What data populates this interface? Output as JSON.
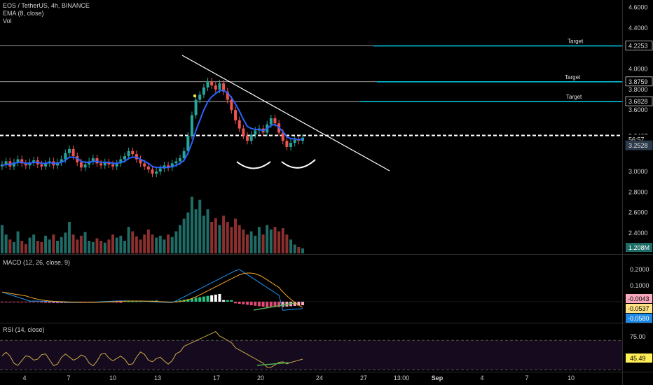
{
  "header": {
    "title": "EOS / TetherUS, 4h, BINANCE",
    "ema_label": "EMA (8, close)",
    "vol_label": "Vol"
  },
  "panes": {
    "macd_label": "MACD (12, 26, close, 9)",
    "rsi_label": "RSI (14, close)"
  },
  "colors": {
    "up": "#26a69a",
    "down": "#ef5350",
    "vol_up": "#1f6b66",
    "vol_down": "#8b2f2f",
    "ema": "#2962ff",
    "macd": "#2196f3",
    "signal": "#f5a623",
    "hist_up": "#26c281",
    "hist_down": "#e04b75",
    "target_line": "#00bcd4",
    "rsi": "#c8a84b",
    "divergence": "#4caf50"
  },
  "chart_data": [
    {
      "type": "candlestick",
      "series": [
        {
          "name": "",
          "values": [
            3.07,
            3.1,
            3.05,
            3.09,
            3.12,
            3.08,
            3.06,
            3.09,
            3.11,
            3.07,
            3.05,
            3.08,
            3.1,
            3.06,
            3.09,
            3.12,
            3.18,
            3.22,
            3.15,
            3.09,
            3.04,
            3.07,
            3.1,
            3.13,
            3.08,
            3.06,
            3.09,
            3.07,
            3.05,
            3.08,
            3.12,
            3.15,
            3.2,
            3.17,
            3.12,
            3.08,
            3.05,
            3.02,
            2.98,
            3.0,
            3.03,
            3.06,
            3.04,
            3.08,
            3.1,
            3.13,
            3.2,
            3.35,
            3.55,
            3.7,
            3.75,
            3.82,
            3.88,
            3.84,
            3.8,
            3.86,
            3.78,
            3.7,
            3.6,
            3.5,
            3.42,
            3.35,
            3.3,
            3.36,
            3.4,
            3.42,
            3.38,
            3.46,
            3.52,
            3.47,
            3.38,
            3.3,
            3.24,
            3.28,
            3.31,
            3.3,
            3.33
          ]
        },
        {
          "name": "EMA (8, close)",
          "values": [
            3.06,
            3.07,
            3.07,
            3.08,
            3.09,
            3.09,
            3.08,
            3.08,
            3.09,
            3.09,
            3.08,
            3.08,
            3.09,
            3.08,
            3.08,
            3.09,
            3.11,
            3.14,
            3.14,
            3.13,
            3.1,
            3.09,
            3.09,
            3.1,
            3.1,
            3.09,
            3.09,
            3.09,
            3.08,
            3.08,
            3.09,
            3.1,
            3.13,
            3.14,
            3.14,
            3.12,
            3.1,
            3.08,
            3.05,
            3.04,
            3.04,
            3.04,
            3.04,
            3.05,
            3.06,
            3.08,
            3.11,
            3.18,
            3.28,
            3.4,
            3.5,
            3.6,
            3.68,
            3.73,
            3.76,
            3.79,
            3.79,
            3.77,
            3.72,
            3.66,
            3.59,
            3.51,
            3.44,
            3.42,
            3.41,
            3.41,
            3.4,
            3.42,
            3.45,
            3.46,
            3.43,
            3.39,
            3.34,
            3.32,
            3.32,
            3.31,
            3.32
          ]
        }
      ],
      "y_axis_labels": [
        "4.6000",
        "4.4000",
        "4.0000",
        "3.8000",
        "3.6000",
        "3.0000",
        "2.8000",
        "2.6000",
        "2.4000"
      ],
      "price_tags": [
        {
          "label": "4.2253",
          "value": 4.2253,
          "style": "target",
          "text": "Target"
        },
        {
          "label": "3.8759",
          "value": 3.8759,
          "style": "target",
          "text": "Target"
        },
        {
          "label": "3.6828",
          "value": 3.6828,
          "style": "target",
          "text": "Target"
        },
        {
          "label": "3.3467",
          "value": 3.3467,
          "style": "plain"
        },
        {
          "label": "56:57",
          "value": 3.31,
          "style": "timer"
        },
        {
          "label": "3.2528",
          "value": 3.2528,
          "style": "price"
        }
      ],
      "volume_tag": "1.208M",
      "ylim": [
        2.3,
        4.7
      ]
    },
    {
      "type": "histogram",
      "title": "MACD (12, 26, close, 9)",
      "y_axis_labels": [
        "0.2000",
        "0.1000"
      ],
      "tags": [
        "-0.0043",
        "-0.0537",
        "-0.0580"
      ],
      "ylim": [
        -0.1,
        0.25
      ]
    },
    {
      "type": "line",
      "title": "RSI (14, close)",
      "y_axis_labels": [
        "75.00"
      ],
      "tags": [
        "45.49"
      ],
      "ylim": [
        20,
        85
      ],
      "band": [
        30,
        70
      ]
    }
  ],
  "x_axis": {
    "labels": [
      "4",
      "7",
      "10",
      "13",
      "17",
      "20",
      "24",
      "27",
      "13:00",
      "Sep",
      "4",
      "7",
      "10"
    ]
  }
}
